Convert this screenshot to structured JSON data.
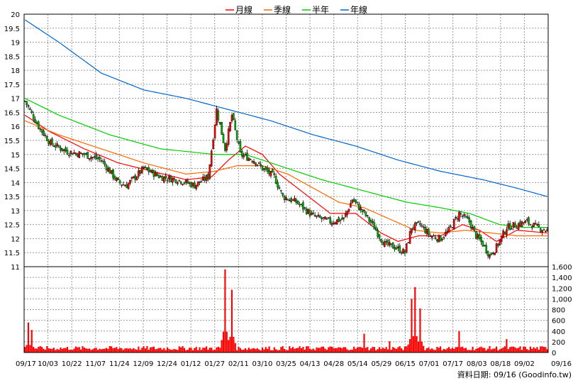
{
  "chart_data": {
    "type": "candlestick",
    "legend": [
      {
        "name": "月線",
        "color": "#ff0000"
      },
      {
        "name": "季線",
        "color": "#ff6600"
      },
      {
        "name": "半年",
        "color": "#00cc00"
      },
      {
        "name": "年線",
        "color": "#0066cc"
      }
    ],
    "price_axis": {
      "min": 11,
      "max": 20,
      "ticks": [
        "11",
        "11.5",
        "12",
        "12.5",
        "13",
        "13.5",
        "14",
        "14.5",
        "15",
        "15.5",
        "16",
        "16.5",
        "17",
        "17.5",
        "18",
        "18.5",
        "19",
        "19.5",
        "20"
      ]
    },
    "volume_axis": {
      "min": 0,
      "max": 1600,
      "ticks": [
        "0",
        "200",
        "400",
        "600",
        "800",
        "1,000",
        "1,200",
        "1,400",
        "1,600"
      ]
    },
    "x_tick_labels": [
      "09/17",
      "10/03",
      "10/22",
      "11/07",
      "11/24",
      "12/09",
      "12/24",
      "01/12",
      "01/27",
      "02/11",
      "03/10",
      "03/25",
      "04/13",
      "04/28",
      "05/14",
      "05/29",
      "06/15",
      "07/01",
      "07/17",
      "08/03",
      "08/18",
      "09/02",
      "09/16"
    ],
    "key_prices": [
      [
        0,
        16.9
      ],
      [
        8,
        16.0
      ],
      [
        15,
        15.4
      ],
      [
        25,
        15.1
      ],
      [
        35,
        15.0
      ],
      [
        45,
        14.8
      ],
      [
        55,
        14.0
      ],
      [
        60,
        13.9
      ],
      [
        70,
        14.5
      ],
      [
        80,
        14.2
      ],
      [
        90,
        14.1
      ],
      [
        100,
        13.9
      ],
      [
        108,
        14.2
      ],
      [
        113,
        16.6
      ],
      [
        118,
        15.2
      ],
      [
        122,
        16.4
      ],
      [
        127,
        15.0
      ],
      [
        135,
        14.8
      ],
      [
        140,
        14.5
      ],
      [
        147,
        14.2
      ],
      [
        152,
        13.5
      ],
      [
        160,
        13.3
      ],
      [
        170,
        12.8
      ],
      [
        180,
        12.6
      ],
      [
        188,
        12.7
      ],
      [
        193,
        13.4
      ],
      [
        200,
        12.9
      ],
      [
        206,
        12.4
      ],
      [
        212,
        11.8
      ],
      [
        218,
        11.7
      ],
      [
        224,
        11.5
      ],
      [
        228,
        12.4
      ],
      [
        233,
        12.5
      ],
      [
        239,
        12.1
      ],
      [
        245,
        12.0
      ],
      [
        250,
        12.3
      ],
      [
        256,
        12.9
      ],
      [
        262,
        12.6
      ],
      [
        266,
        12.1
      ],
      [
        270,
        11.8
      ],
      [
        274,
        11.4
      ],
      [
        278,
        11.7
      ],
      [
        284,
        12.4
      ],
      [
        290,
        12.5
      ],
      [
        296,
        12.6
      ],
      [
        302,
        12.4
      ],
      [
        308,
        12.3
      ]
    ],
    "ma_month": [
      [
        0,
        16.4
      ],
      [
        15,
        15.8
      ],
      [
        35,
        15.2
      ],
      [
        55,
        14.7
      ],
      [
        75,
        14.4
      ],
      [
        95,
        14.1
      ],
      [
        110,
        14.2
      ],
      [
        120,
        14.8
      ],
      [
        130,
        15.3
      ],
      [
        140,
        15.0
      ],
      [
        150,
        14.3
      ],
      [
        165,
        13.6
      ],
      [
        180,
        12.9
      ],
      [
        195,
        12.9
      ],
      [
        210,
        12.2
      ],
      [
        220,
        11.9
      ],
      [
        232,
        12.1
      ],
      [
        245,
        12.1
      ],
      [
        258,
        12.5
      ],
      [
        268,
        12.3
      ],
      [
        278,
        11.9
      ],
      [
        290,
        12.3
      ],
      [
        308,
        12.2
      ]
    ],
    "ma_quarter": [
      [
        0,
        16.2
      ],
      [
        20,
        15.7
      ],
      [
        45,
        15.2
      ],
      [
        70,
        14.7
      ],
      [
        95,
        14.3
      ],
      [
        112,
        14.4
      ],
      [
        125,
        14.6
      ],
      [
        140,
        14.6
      ],
      [
        155,
        14.3
      ],
      [
        170,
        13.8
      ],
      [
        185,
        13.3
      ],
      [
        200,
        13.1
      ],
      [
        215,
        12.7
      ],
      [
        230,
        12.3
      ],
      [
        245,
        12.2
      ],
      [
        260,
        12.3
      ],
      [
        275,
        12.2
      ],
      [
        290,
        12.1
      ],
      [
        308,
        12.1
      ]
    ],
    "ma_half": [
      [
        0,
        17.0
      ],
      [
        20,
        16.4
      ],
      [
        50,
        15.7
      ],
      [
        80,
        15.2
      ],
      [
        112,
        15.0
      ],
      [
        130,
        15.0
      ],
      [
        150,
        14.6
      ],
      [
        175,
        14.1
      ],
      [
        200,
        13.7
      ],
      [
        225,
        13.3
      ],
      [
        245,
        13.1
      ],
      [
        262,
        12.9
      ],
      [
        280,
        12.5
      ],
      [
        295,
        12.4
      ],
      [
        308,
        12.4
      ]
    ],
    "ma_year": [
      [
        0,
        19.8
      ],
      [
        20,
        19.0
      ],
      [
        45,
        17.9
      ],
      [
        70,
        17.3
      ],
      [
        95,
        17.0
      ],
      [
        120,
        16.6
      ],
      [
        145,
        16.2
      ],
      [
        170,
        15.7
      ],
      [
        195,
        15.3
      ],
      [
        220,
        14.8
      ],
      [
        245,
        14.4
      ],
      [
        270,
        14.1
      ],
      [
        290,
        13.8
      ],
      [
        308,
        13.5
      ]
    ],
    "volume_spikes": [
      [
        2,
        560
      ],
      [
        4,
        420
      ],
      [
        118,
        1550
      ],
      [
        122,
        1170
      ],
      [
        200,
        350
      ],
      [
        215,
        210
      ],
      [
        228,
        1000
      ],
      [
        230,
        1220
      ],
      [
        233,
        820
      ],
      [
        256,
        400
      ],
      [
        284,
        250
      ]
    ],
    "source_note": "資料日期: 09/16 (Goodinfo.tw)"
  }
}
